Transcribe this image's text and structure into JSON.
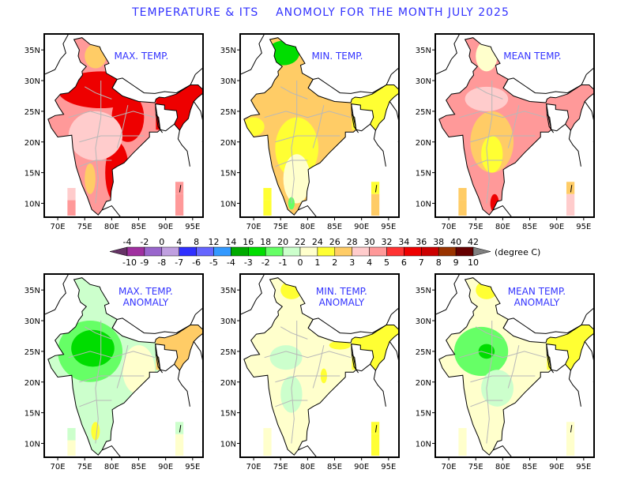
{
  "title": "TEMPERATURE & ITS    ANOMOLY FOR THE MONTH JULY 2025",
  "lat_ticks": [
    "35N",
    "30N",
    "25N",
    "20N",
    "15N",
    "10N"
  ],
  "lat_values": [
    35,
    30,
    25,
    20,
    15,
    10
  ],
  "lon_ticks": [
    "70E",
    "75E",
    "80E",
    "85E",
    "90E",
    "95E"
  ],
  "lon_values": [
    70,
    75,
    80,
    85,
    90,
    95
  ],
  "panels": [
    {
      "lines": [
        "MAX. TEMP."
      ],
      "base": "#ff9999",
      "blobs": [
        [
          "#ee0000",
          78,
          28.5,
          8,
          3
        ],
        [
          "#ee0000",
          83,
          24,
          3,
          4
        ],
        [
          "#ee0000",
          81,
          15,
          2.2,
          5
        ],
        [
          "#ffcccc",
          77,
          21,
          5,
          4
        ],
        [
          "#ffcc66",
          76,
          14,
          1,
          2.5
        ],
        [
          "#ffcc66",
          77,
          34,
          2,
          2
        ]
      ],
      "ne": "#ee0000",
      "lak": [
        "#ffcccc",
        "#ff9999"
      ],
      "an": [
        "#ff9999",
        "#ff9999"
      ]
    },
    {
      "lines": [
        "MIN. TEMP."
      ],
      "base": "#ffcc66",
      "blobs": [
        [
          "#ffff33",
          78,
          19,
          4,
          5
        ],
        [
          "#ffffcc",
          78,
          14,
          2.5,
          4
        ],
        [
          "#00dd00",
          75.5,
          34.5,
          3,
          2
        ],
        [
          "#ffff33",
          70,
          22.5,
          2,
          1.5
        ],
        [
          "#66ff66",
          77,
          10,
          0.6,
          1
        ]
      ],
      "ne": "#ffff33",
      "lak": [
        "#ffff33",
        "#ffff33"
      ],
      "an": [
        "#ffff33",
        "#ffcc66"
      ]
    },
    {
      "lines": [
        "MEAN TEMP."
      ],
      "base": "#ff9999",
      "blobs": [
        [
          "#ffcc66",
          78,
          20,
          4,
          5
        ],
        [
          "#ffff33",
          78,
          18,
          2,
          3
        ],
        [
          "#ffcccc",
          77,
          27,
          4,
          2
        ],
        [
          "#ffffcc",
          77,
          34,
          2,
          2.5
        ],
        [
          "#ee0000",
          78.5,
          10,
          0.8,
          1.5
        ]
      ],
      "ne": "#ff9999",
      "lak": [
        "#ffcc66",
        "#ffcc66"
      ],
      "an": [
        "#ffcc66",
        "#ffcccc"
      ]
    },
    {
      "lines": [
        "MAX. TEMP.",
        "ANOMALY"
      ],
      "base": "#ccffcc",
      "blobs": [
        [
          "#66ff66",
          76,
          25,
          6,
          5
        ],
        [
          "#00dd00",
          76.5,
          25.5,
          4,
          3
        ],
        [
          "#ffffcc",
          85,
          22,
          3,
          4
        ],
        [
          "#ffff33",
          77,
          12,
          0.8,
          1.5
        ]
      ],
      "ne": "#ffcc66",
      "lak": [
        "#ccffcc",
        "#ffffcc"
      ],
      "an": [
        "#ccffcc",
        "#ffffcc"
      ]
    },
    {
      "lines": [
        "MIN. TEMP.",
        "ANOMALY"
      ],
      "base": "#ffffcc",
      "blobs": [
        [
          "#ccffcc",
          76,
          24,
          3,
          2
        ],
        [
          "#ccffcc",
          77,
          18,
          2,
          3
        ],
        [
          "#ffff33",
          77,
          35,
          2,
          1.5
        ],
        [
          "#ffff33",
          83,
          21,
          0.6,
          1.2
        ],
        [
          "#ffff33",
          86,
          26,
          2,
          0.7
        ]
      ],
      "ne": "#ffff33",
      "lak": [
        "#ffffcc",
        "#ffffcc"
      ],
      "an": [
        "#ffff33",
        "#ffff33"
      ]
    },
    {
      "lines": [
        "MEAN TEMP.",
        "ANOMALY"
      ],
      "base": "#ffffcc",
      "blobs": [
        [
          "#66ff66",
          76,
          25,
          5,
          4
        ],
        [
          "#00dd00",
          77,
          25,
          1.5,
          1.2
        ],
        [
          "#ffff33",
          77,
          35,
          2,
          1.5
        ],
        [
          "#ccffcc",
          79,
          19,
          3,
          3
        ]
      ],
      "ne": "#ffff33",
      "lak": [
        "#ffffcc",
        "#ffffcc"
      ],
      "an": [
        "#ffffcc",
        "#ffffcc"
      ]
    }
  ],
  "colorbar": {
    "top_labels": [
      "-4",
      "-2",
      "0",
      "4",
      "8",
      "12",
      "14",
      "16",
      "18",
      "20",
      "22",
      "24",
      "26",
      "28",
      "30",
      "32",
      "34",
      "36",
      "38",
      "40",
      "42"
    ],
    "bottom_labels": [
      "-10",
      "-9",
      "-8",
      "-7",
      "-6",
      "-5",
      "-4",
      "-3",
      "-2",
      "-1",
      "0",
      "1",
      "2",
      "3",
      "4",
      "5",
      "6",
      "7",
      "8",
      "9",
      "10"
    ],
    "colors": [
      "#a030a0",
      "#9966cc",
      "#c0a0e0",
      "#3030ff",
      "#6666ff",
      "#3399ff",
      "#00aa00",
      "#00dd00",
      "#66ff66",
      "#ccffcc",
      "#ffffcc",
      "#ffff33",
      "#ffcc66",
      "#ffcccc",
      "#ff9999",
      "#ff3333",
      "#ee0000",
      "#cc0000",
      "#993300",
      "#660000"
    ],
    "low_arrow": "#663366",
    "high_arrow": "#808080",
    "unit": "(degree C)"
  }
}
